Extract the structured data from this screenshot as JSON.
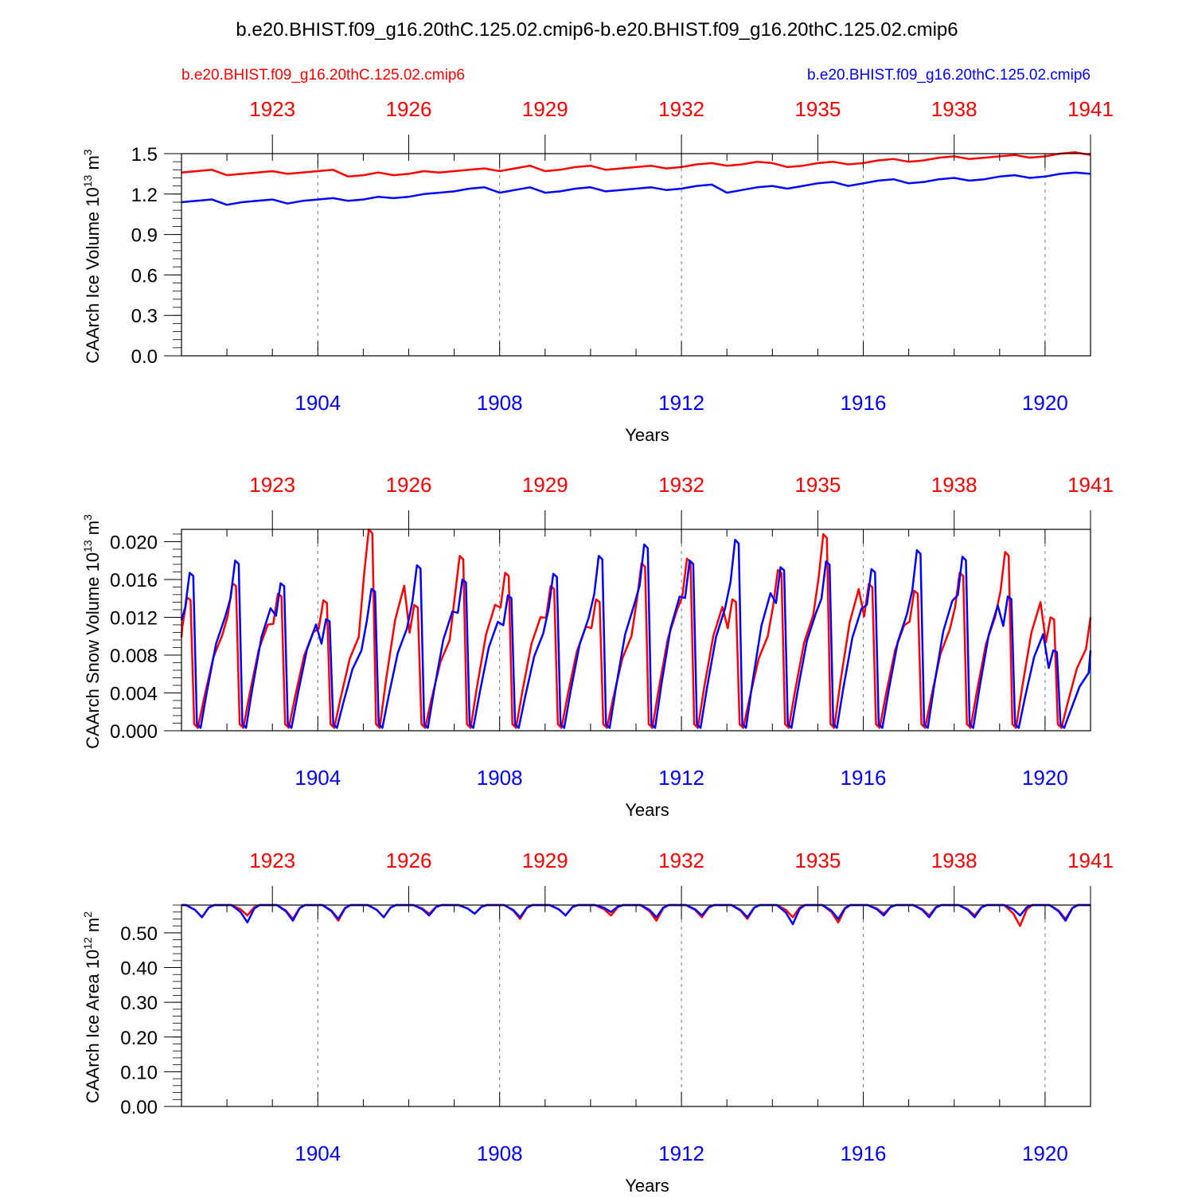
{
  "title": "b.e20.BHIST.f09_g16.20thC.125.02.cmip6-b.e20.BHIST.f09_g16.20thC.125.02.cmip6",
  "legend": {
    "red_label": "b.e20.BHIST.f09_g16.20thC.125.02.cmip6",
    "blue_label": "b.e20.BHIST.f09_g16.20thC.125.02.cmip6",
    "red_color": "#ff0000",
    "blue_color": "#0000ff"
  },
  "chart_data": [
    {
      "type": "line",
      "ylabel": "CAArch Ice Volume 10",
      "ylabel_exp": "13",
      "ylabel_unit": "m",
      "ylabel_unit_exp": "3",
      "xlabel": "Years",
      "ylim": [
        0,
        1.5
      ],
      "yticks": [
        "0.0",
        "0.3",
        "0.6",
        "0.9",
        "1.2",
        "1.5"
      ],
      "ytick_values": [
        0,
        0.3,
        0.6,
        0.9,
        1.2,
        1.5
      ],
      "bottom_xticks": [
        "1904",
        "1908",
        "1912",
        "1916",
        "1920"
      ],
      "top_xticks": [
        "1923",
        "1926",
        "1929",
        "1932",
        "1935",
        "1938",
        "1941"
      ],
      "series": [
        {
          "name": "b.e20.BHIST.f09_g16.20thC.125.02.cmip6 (red, 1921-1941)",
          "color": "#ff0000",
          "values": [
            1.36,
            1.37,
            1.38,
            1.34,
            1.35,
            1.36,
            1.37,
            1.35,
            1.36,
            1.37,
            1.38,
            1.33,
            1.34,
            1.36,
            1.34,
            1.35,
            1.37,
            1.36,
            1.37,
            1.38,
            1.39,
            1.37,
            1.39,
            1.41,
            1.37,
            1.38,
            1.4,
            1.41,
            1.38,
            1.39,
            1.4,
            1.41,
            1.39,
            1.4,
            1.42,
            1.43,
            1.41,
            1.42,
            1.44,
            1.43,
            1.4,
            1.41,
            1.43,
            1.44,
            1.42,
            1.43,
            1.45,
            1.46,
            1.44,
            1.45,
            1.47,
            1.48,
            1.46,
            1.47,
            1.48,
            1.49,
            1.47,
            1.48,
            1.5,
            1.51,
            1.49
          ]
        },
        {
          "name": "b.e20.BHIST.f09_g16.20thC.125.02.cmip6 (blue, 1901-1921)",
          "color": "#0000ff",
          "values": [
            1.14,
            1.15,
            1.16,
            1.12,
            1.14,
            1.15,
            1.16,
            1.13,
            1.15,
            1.16,
            1.17,
            1.15,
            1.16,
            1.18,
            1.17,
            1.18,
            1.2,
            1.21,
            1.22,
            1.24,
            1.25,
            1.21,
            1.23,
            1.25,
            1.21,
            1.22,
            1.24,
            1.25,
            1.22,
            1.23,
            1.24,
            1.25,
            1.23,
            1.24,
            1.26,
            1.27,
            1.21,
            1.23,
            1.25,
            1.26,
            1.24,
            1.26,
            1.28,
            1.29,
            1.26,
            1.28,
            1.3,
            1.31,
            1.28,
            1.29,
            1.31,
            1.32,
            1.3,
            1.31,
            1.33,
            1.34,
            1.32,
            1.33,
            1.35,
            1.36,
            1.35
          ]
        }
      ]
    },
    {
      "type": "line",
      "ylabel": "CAArch Snow Volume 10",
      "ylabel_exp": "13",
      "ylabel_unit": "m",
      "ylabel_unit_exp": "3",
      "xlabel": "Years",
      "ylim": [
        0,
        0.0213
      ],
      "yticks": [
        "0.000",
        "0.004",
        "0.008",
        "0.012",
        "0.016",
        "0.020"
      ],
      "ytick_values": [
        0,
        0.004,
        0.008,
        0.012,
        0.016,
        0.02
      ],
      "bottom_xticks": [
        "1904",
        "1908",
        "1912",
        "1916",
        "1920"
      ],
      "top_xticks": [
        "1923",
        "1926",
        "1929",
        "1932",
        "1935",
        "1938",
        "1941"
      ],
      "seasonal": true,
      "series": [
        {
          "name": "b.e20.BHIST.f09_g16.20thC.125.02.cmip6 (red, annual snow peaks)",
          "color": "#ff0000",
          "values": [
            0.0141,
            0.0156,
            0.0145,
            0.0138,
            0.0213,
            0.0133,
            0.0185,
            0.0167,
            0.0153,
            0.0139,
            0.0177,
            0.0182,
            0.0139,
            0.017,
            0.0208,
            0.0155,
            0.0148,
            0.0167,
            0.0189,
            0.012
          ]
        },
        {
          "name": "b.e20.BHIST.f09_g16.20thC.125.02.cmip6 (blue, annual snow peaks)",
          "color": "#0000ff",
          "values": [
            0.0167,
            0.018,
            0.0156,
            0.0118,
            0.015,
            0.0175,
            0.016,
            0.0143,
            0.0166,
            0.0185,
            0.0197,
            0.018,
            0.0202,
            0.0173,
            0.0179,
            0.0171,
            0.0191,
            0.0184,
            0.0142,
            0.0085
          ]
        }
      ]
    },
    {
      "type": "line",
      "ylabel": "CAArch Ice Area 10",
      "ylabel_exp": "12",
      "ylabel_unit": "m",
      "ylabel_unit_exp": "2",
      "xlabel": "Years",
      "ylim": [
        0,
        0.58
      ],
      "yticks": [
        "0.00",
        "0.10",
        "0.20",
        "0.30",
        "0.40",
        "0.50"
      ],
      "ytick_values": [
        0,
        0.1,
        0.2,
        0.3,
        0.4,
        0.5
      ],
      "bottom_xticks": [
        "1904",
        "1908",
        "1912",
        "1916",
        "1920"
      ],
      "top_xticks": [
        "1923",
        "1926",
        "1929",
        "1932",
        "1935",
        "1938",
        "1941"
      ],
      "plateau": 0.58,
      "series": [
        {
          "name": "b.e20.BHIST.f09_g16.20thC.125.02.cmip6 (red, annual area minima)",
          "color": "#ff0000",
          "values": [
            0.545,
            0.55,
            0.54,
            0.535,
            0.545,
            0.555,
            0.555,
            0.54,
            0.55,
            0.55,
            0.535,
            0.545,
            0.54,
            0.545,
            0.53,
            0.555,
            0.55,
            0.55,
            0.52,
            0.54
          ]
        },
        {
          "name": "b.e20.BHIST.f09_g16.20thC.125.02.cmip6 (blue, annual area minima)",
          "color": "#0000ff",
          "values": [
            0.545,
            0.53,
            0.535,
            0.54,
            0.545,
            0.55,
            0.555,
            0.545,
            0.55,
            0.56,
            0.545,
            0.55,
            0.545,
            0.525,
            0.54,
            0.55,
            0.545,
            0.545,
            0.55,
            0.535
          ]
        }
      ]
    }
  ]
}
